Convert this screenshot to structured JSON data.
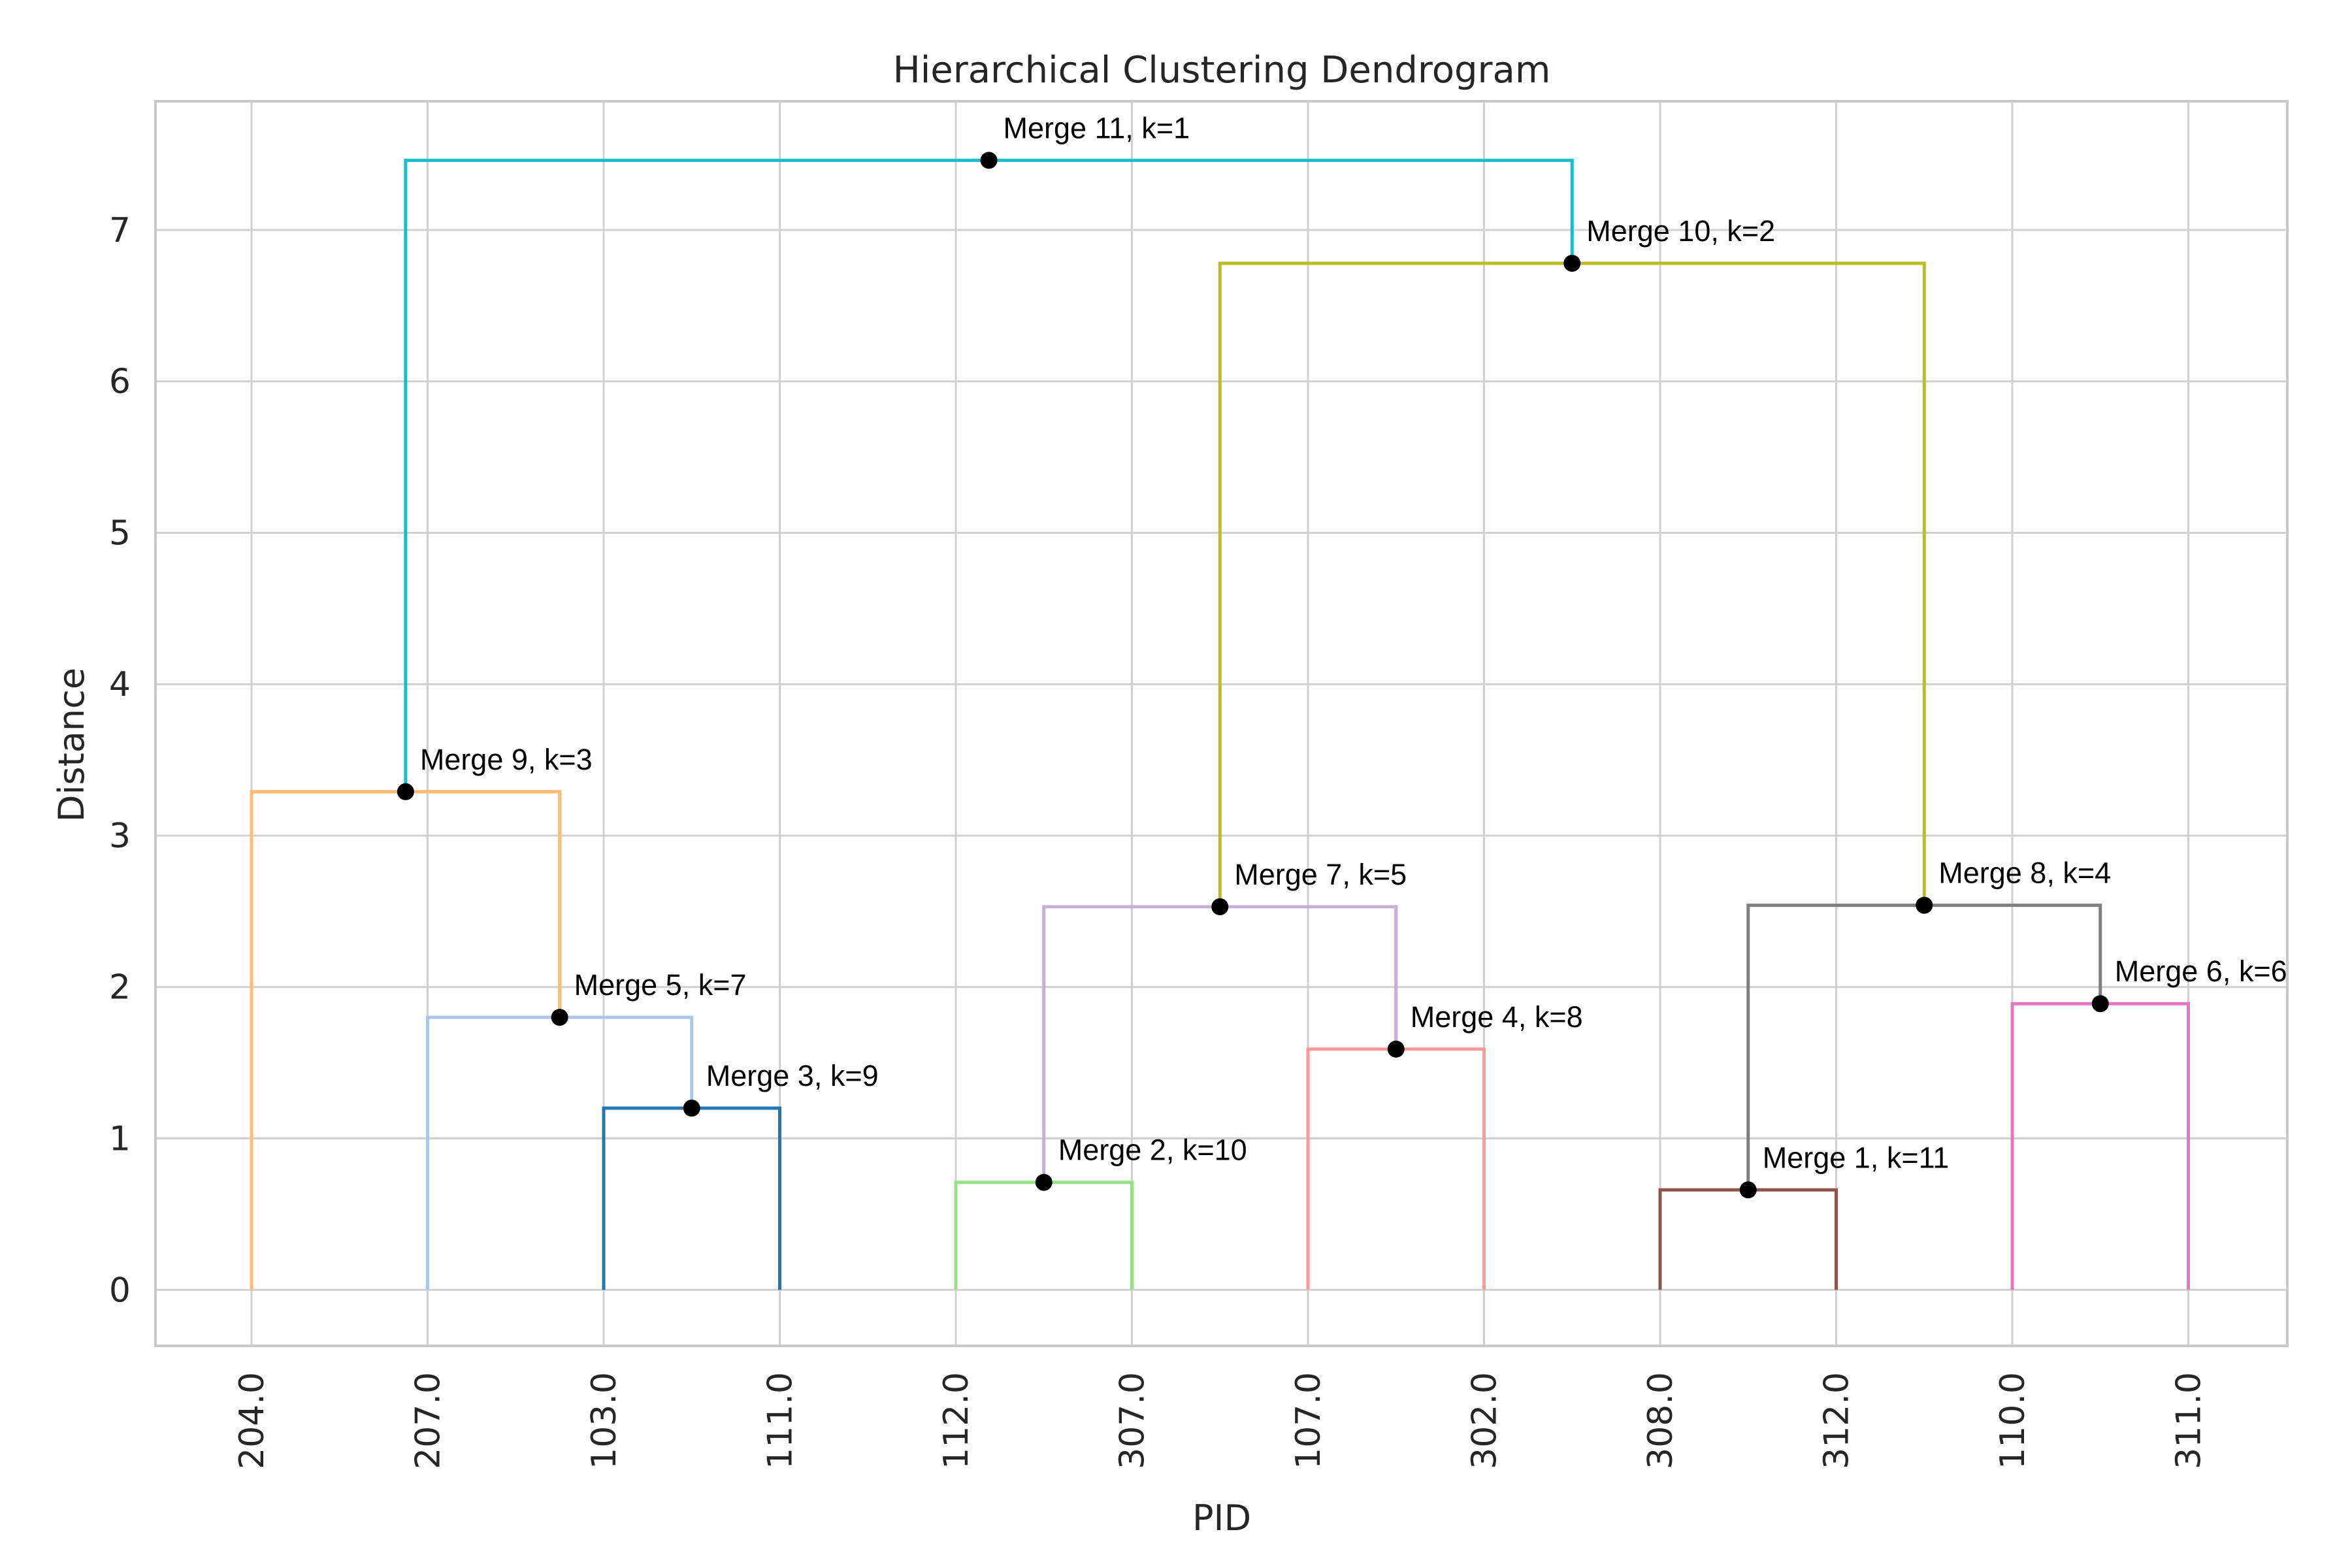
{
  "chart_data": {
    "type": "dendrogram",
    "title": "Hierarchical Clustering Dendrogram",
    "xlabel": "PID",
    "ylabel": "Distance",
    "ylim": [
      -0.37,
      7.85
    ],
    "yticks": [
      "0",
      "1",
      "2",
      "3",
      "4",
      "5",
      "6",
      "7"
    ],
    "leaves": [
      "204.0",
      "207.0",
      "103.0",
      "111.0",
      "112.0",
      "307.0",
      "107.0",
      "302.0",
      "308.0",
      "312.0",
      "110.0",
      "311.0"
    ],
    "grid": true,
    "merges": [
      {
        "label": "Merge 1, k=11",
        "left": 8,
        "right": 9,
        "distance": 0.66,
        "color": "#8c564b"
      },
      {
        "label": "Merge 2, k=10",
        "left": 4,
        "right": 5,
        "distance": 0.71,
        "color": "#98df8a"
      },
      {
        "label": "Merge 3, k=9",
        "left": 2,
        "right": 3,
        "distance": 1.2,
        "color": "#1f77b4"
      },
      {
        "label": "Merge 4, k=8",
        "left": 6,
        "right": 7,
        "distance": 1.59,
        "color": "#ff9896"
      },
      {
        "label": "Merge 5, k=7",
        "left": 1,
        "right": "M3",
        "distance": 1.8,
        "color": "#aec7e8"
      },
      {
        "label": "Merge 6, k=6",
        "left": 10,
        "right": 11,
        "distance": 1.89,
        "color": "#e377c2"
      },
      {
        "label": "Merge 7, k=5",
        "left": "M2",
        "right": "M4",
        "distance": 2.53,
        "color": "#c5b0d5"
      },
      {
        "label": "Merge 8, k=4",
        "left": "M1",
        "right": "M6",
        "distance": 2.54,
        "color": "#7f7f7f"
      },
      {
        "label": "Merge 9, k=3",
        "left": 0,
        "right": "M5",
        "distance": 3.29,
        "color": "#ffbb78"
      },
      {
        "label": "Merge 10, k=2",
        "left": "M7",
        "right": "M8",
        "distance": 6.78,
        "color": "#bcbd22"
      },
      {
        "label": "Merge 11, k=1",
        "left": "M9",
        "right": "M10",
        "distance": 7.46,
        "color": "#17becf"
      }
    ]
  }
}
